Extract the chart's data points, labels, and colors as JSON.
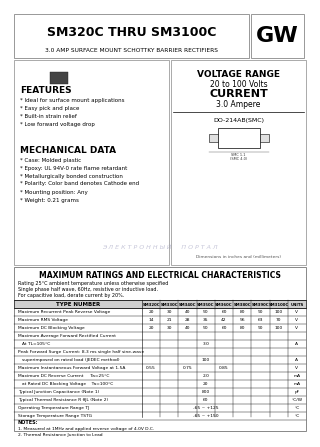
{
  "title_main": "SM320C THRU SM3100C",
  "title_sub": "3.0 AMP SURFACE MOUNT SCHOTTKY BARRIER RECTIFIERS",
  "voltage_range_label": "VOLTAGE RANGE",
  "voltage_range_value": "20 to 100 Volts",
  "current_label": "CURRENT",
  "current_value": "3.0 Ampere",
  "features_title": "FEATURES",
  "features": [
    "* Ideal for surface mount applications",
    "* Easy pick and place",
    "* Built-in strain relief",
    "* Low forward voltage drop"
  ],
  "mech_title": "MECHANICAL DATA",
  "mech_items": [
    "* Case: Molded plastic",
    "* Epoxy: UL 94V-0 rate flame retardant",
    "* Metallurgically bonded construction",
    "* Polarity: Color band denotes Cathode end",
    "* Mounting position: Any",
    "* Weight: 0.21 grams"
  ],
  "package_label": "DO-214AB(SMC)",
  "table_title": "MAXIMUM RATINGS AND ELECTRICAL CHARACTERISTICS",
  "table_note1": "Rating 25°C ambient temperature unless otherwise specified",
  "table_note2": "Single phase half wave, 60Hz, resistive or inductive load.",
  "table_note3": "For capacitive load, derate current by 20%.",
  "col_headers": [
    "SM320C",
    "SM330C",
    "SM340C",
    "SM350C",
    "SM360C",
    "SM380C",
    "SM390C",
    "SM3100C",
    "UNITS"
  ],
  "row_data": [
    [
      "Maximum Recurrent Peak Reverse Voltage",
      "20",
      "30",
      "40",
      "50",
      "60",
      "80",
      "90",
      "100",
      "V"
    ],
    [
      "Maximum RMS Voltage",
      "14",
      "21",
      "28",
      "35",
      "42",
      "56",
      "63",
      "70",
      "V"
    ],
    [
      "Maximum DC Blocking Voltage",
      "20",
      "30",
      "40",
      "50",
      "60",
      "80",
      "90",
      "100",
      "V"
    ],
    [
      "Maximum Average Forward Rectified Current",
      "",
      "",
      "",
      "",
      "",
      "",
      "",
      "",
      ""
    ],
    [
      "At TL=105°C",
      "",
      "",
      "",
      "3.0",
      "",
      "",
      "",
      "",
      "A"
    ],
    [
      "Peak Forward Surge Current: 8.3 ms single half sine-wave",
      "",
      "",
      "",
      "",
      "",
      "",
      "",
      "",
      ""
    ],
    [
      "superimposed on rated load (JEDEC method)",
      "",
      "",
      "",
      "100",
      "",
      "",
      "",
      "",
      "A"
    ],
    [
      "Maximum Instantaneous Forward Voltage at 1.5A",
      "0.55",
      "",
      "0.75",
      "",
      "0.85",
      "",
      "",
      "",
      "V"
    ],
    [
      "Maximum DC Reverse Current     Ta=25°C",
      "",
      "",
      "",
      "2.0",
      "",
      "",
      "",
      "",
      "mA"
    ],
    [
      "at Rated DC Blocking Voltage    Ta=100°C",
      "",
      "",
      "",
      "20",
      "",
      "",
      "",
      "",
      "mA"
    ],
    [
      "Typical Junction Capacitance (Note 1)",
      "",
      "",
      "",
      "800",
      "",
      "",
      "",
      "",
      "pF"
    ],
    [
      "Typical Thermal Resistance R θJL (Note 2)",
      "",
      "",
      "",
      "60",
      "",
      "",
      "",
      "",
      "°C/W"
    ],
    [
      "Operating Temperature Range TJ",
      "",
      "",
      "",
      "-65 ~ +125",
      "",
      "",
      "",
      "",
      "°C"
    ],
    [
      "Storage Temperature Range TSTG",
      "",
      "",
      "",
      "-65 ~ +150",
      "",
      "",
      "",
      "",
      "°C"
    ]
  ],
  "notes": [
    "1. Measured at 1MHz and applied reverse voltage of 4.0V D.C.",
    "2. Thermal Resistance Junction to Lead"
  ],
  "bg_color": "#ffffff",
  "watermark_text": "Э Л Е К Т Р О Н Н Ы Й     П О Р Т А Л"
}
